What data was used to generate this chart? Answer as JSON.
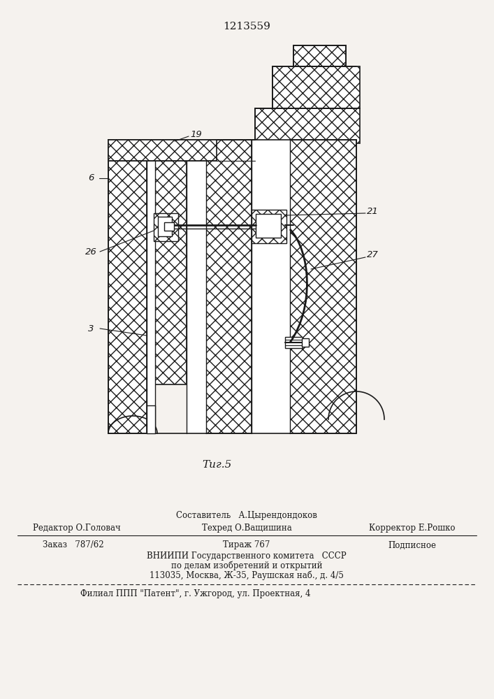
{
  "patent_number": "1213559",
  "figure_label": "Τиг.5",
  "bg": "#f5f2ee",
  "lc": "#1a1a1a",
  "footer": {
    "sestavitel_label": "Составитель",
    "sestavitel_name": "А.Цырендондоков",
    "redaktor": "Редактор О.Головач",
    "tehred": "Техред О.Ващишина",
    "korrektor": "Корректор Е.Рошко",
    "zakaz": "Заказ   787/62",
    "tirazh": "Тираж 767",
    "podpisnoe": "Подписное",
    "vniigi1": "ВНИИПИ Государственного комитета   СССР",
    "vniigi2": "по делам изобретений и открытий",
    "vniigi3": "113035, Москва, Ж-35, Раушская наб., д. 4/5",
    "filial": "Филиал ППП \"Патент\", г. Ужгород, ул. Проектная, 4"
  }
}
